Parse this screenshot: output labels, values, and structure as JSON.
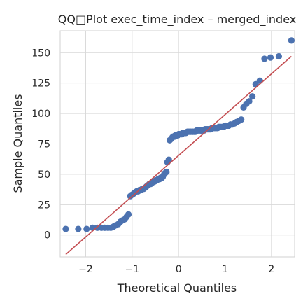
{
  "chart_data": {
    "type": "scatter",
    "title": "QQ□Plot exec_time_index – merged_index",
    "xlabel": "Theoretical Quantiles",
    "ylabel": "Sample Quantiles",
    "xlim": [
      -2.55,
      2.5
    ],
    "ylim": [
      -18,
      168
    ],
    "xticks": [
      -2,
      -1,
      0,
      1,
      2
    ],
    "xtick_labels": [
      "−2",
      "−1",
      "0",
      "1",
      "2"
    ],
    "yticks": [
      0,
      25,
      50,
      75,
      100,
      125,
      150
    ],
    "ytick_labels": [
      "0",
      "25",
      "50",
      "75",
      "100",
      "125",
      "150"
    ],
    "grid": true,
    "legend": "none",
    "point_color": "#4c72b0",
    "line_color": "#c44e52",
    "reference_line": {
      "x": [
        -2.43,
        2.43
      ],
      "y": [
        -16,
        147
      ]
    },
    "series": [
      {
        "x": [
          -2.43,
          -2.16,
          -1.98,
          -1.85,
          -1.75,
          -1.66,
          -1.59,
          -1.52,
          -1.46,
          -1.4,
          -1.35,
          -1.3,
          -1.25,
          -1.21,
          -1.16,
          -1.12,
          -1.08,
          -1.04,
          -1.01,
          -0.97,
          -0.94,
          -0.9,
          -0.87,
          -0.84,
          -0.81,
          -0.78,
          -0.75,
          -0.72,
          -0.69,
          -0.66,
          -0.63,
          -0.6,
          -0.57,
          -0.55,
          -0.52,
          -0.49,
          -0.47,
          -0.44,
          -0.41,
          -0.39,
          -0.36,
          -0.34,
          -0.31,
          -0.29,
          -0.26,
          -0.24,
          -0.21,
          -0.19,
          -0.16,
          -0.14,
          -0.12,
          -0.09,
          -0.07,
          -0.05,
          -0.02,
          0.0,
          0.02,
          0.05,
          0.07,
          0.09,
          0.12,
          0.14,
          0.16,
          0.19,
          0.21,
          0.24,
          0.26,
          0.29,
          0.31,
          0.34,
          0.36,
          0.39,
          0.41,
          0.44,
          0.47,
          0.49,
          0.52,
          0.55,
          0.57,
          0.6,
          0.63,
          0.66,
          0.69,
          0.72,
          0.75,
          0.78,
          0.81,
          0.84,
          0.87,
          0.9,
          0.94,
          0.97,
          1.01,
          1.04,
          1.08,
          1.12,
          1.16,
          1.21,
          1.25,
          1.3,
          1.35,
          1.4,
          1.46,
          1.52,
          1.59,
          1.66,
          1.75,
          1.85,
          1.98,
          2.16,
          2.43
        ],
        "y": [
          5,
          5,
          5,
          6,
          6,
          6,
          6,
          6,
          6,
          7,
          8,
          9,
          11,
          12,
          13,
          15,
          17,
          32,
          33,
          34,
          35,
          36,
          36,
          37,
          37,
          38,
          38,
          39,
          40,
          41,
          42,
          42,
          43,
          44,
          44,
          45,
          45,
          46,
          46,
          47,
          47,
          48,
          50,
          51,
          52,
          60,
          62,
          78,
          79,
          80,
          81,
          81,
          82,
          82,
          82,
          83,
          83,
          83,
          83,
          84,
          84,
          84,
          84,
          85,
          85,
          85,
          85,
          85,
          85,
          85,
          85,
          86,
          86,
          86,
          86,
          86,
          86,
          86,
          87,
          87,
          87,
          87,
          87,
          88,
          88,
          88,
          88,
          88,
          89,
          89,
          89,
          89,
          90,
          90,
          90,
          91,
          91,
          92,
          93,
          94,
          95,
          105,
          108,
          110,
          114,
          124,
          127,
          145,
          146,
          147,
          160
        ]
      }
    ]
  }
}
